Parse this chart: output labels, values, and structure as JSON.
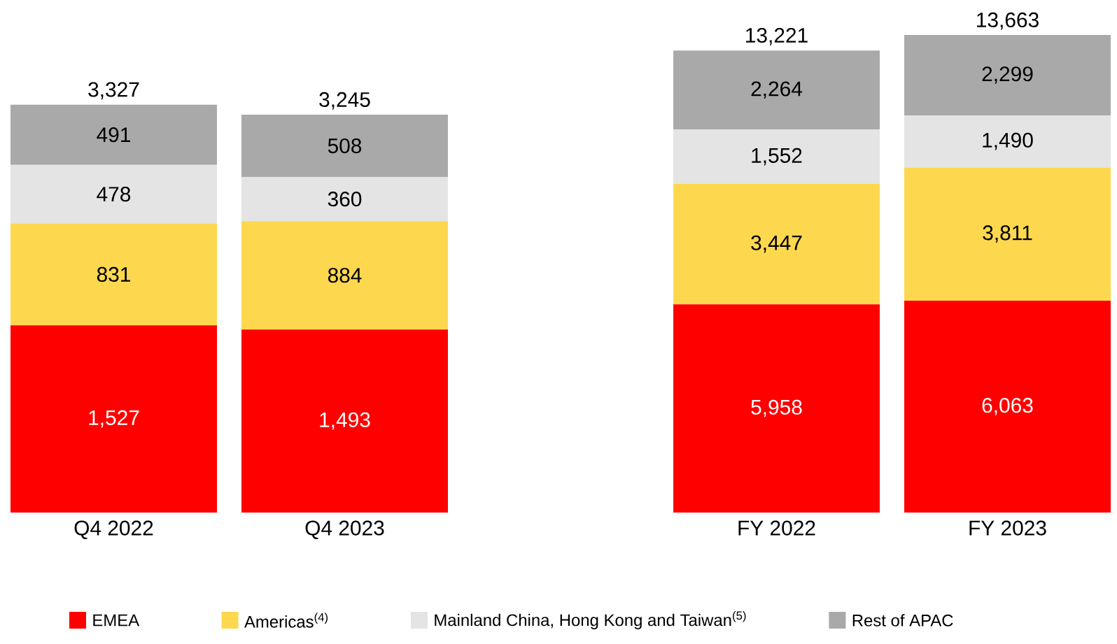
{
  "chart_data": [
    {
      "type": "bar",
      "stacked": true,
      "legend": "bottom",
      "categories": [
        "Q4 2022",
        "Q4 2023"
      ],
      "totals": [
        "3,327",
        "3,245"
      ],
      "series": [
        {
          "name": "EMEA",
          "color": "#ff0000",
          "values": [
            1527,
            1493
          ],
          "value_labels": [
            "1,527",
            "1,493"
          ]
        },
        {
          "name": "Americas$^{(4)}$",
          "color": "#fdd84e",
          "values": [
            831,
            884
          ],
          "value_labels": [
            "831",
            "884"
          ]
        },
        {
          "name": "Mainland China, Hong Kong and Taiwan$^{(5)}$",
          "color": "#e4e4e4",
          "values": [
            478,
            360
          ],
          "value_labels": [
            "478",
            "360"
          ]
        },
        {
          "name": "Rest of APAC",
          "color": "#a9a9a9",
          "values": [
            491,
            508
          ],
          "value_labels": [
            "491",
            "508"
          ]
        }
      ]
    },
    {
      "type": "bar",
      "stacked": true,
      "categories": [
        "FY 2022",
        "FY 2023"
      ],
      "totals": [
        "13,221",
        "13,663"
      ],
      "series": [
        {
          "color": "#ff0000",
          "values": [
            5958,
            6063
          ],
          "value_labels": [
            "5,958",
            "6,063"
          ]
        },
        {
          "color": "#fdd84e",
          "values": [
            3447,
            3811
          ],
          "value_labels": [
            "3,447",
            "3,811"
          ]
        },
        {
          "color": "#e4e4e4",
          "values": [
            1552,
            1490
          ],
          "value_labels": [
            "1,552",
            "1,490"
          ]
        },
        {
          "color": "#a9a9a9",
          "values": [
            2264,
            2299
          ],
          "value_labels": [
            "2,264",
            "2,299"
          ]
        }
      ]
    }
  ]
}
